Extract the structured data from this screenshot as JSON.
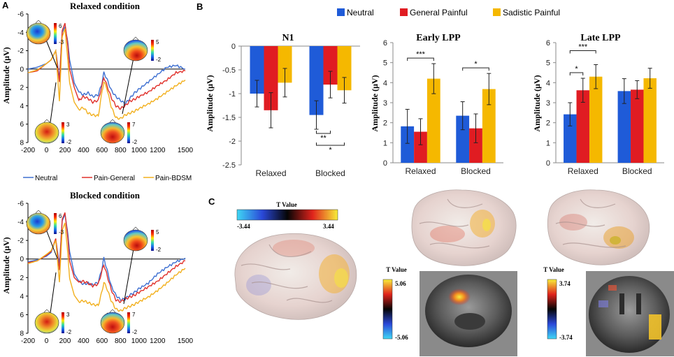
{
  "panel_labels": {
    "a": "A",
    "b": "B",
    "c": "C"
  },
  "colors": {
    "neutral": "#1f5bd8",
    "general": "#e01c22",
    "sadistic": "#f5b800",
    "erp_neutral": "#3d6fd1",
    "erp_general": "#e0302a",
    "erp_bdsm": "#f2b01e"
  },
  "erp": {
    "relaxed_title": "Relaxed condition",
    "blocked_title": "Blocked condition",
    "ylabel": "Amplitude (μV)",
    "yticks": [
      "-6",
      "-4",
      "-2",
      "0",
      "2",
      "4",
      "6",
      "8"
    ],
    "xticks": [
      "-200",
      "0",
      "200",
      "400",
      "600",
      "800",
      "1000",
      "1200",
      "1500"
    ],
    "legend": [
      "Neutral",
      "Pain-General",
      "Pain-BDSM"
    ],
    "topo_scales": {
      "relaxed": [
        [
          "6",
          "-3"
        ],
        [
          "5",
          "-2"
        ],
        [
          "3",
          "-2"
        ],
        [
          "7",
          "-2"
        ]
      ],
      "blocked": [
        [
          "6",
          "-3"
        ],
        [
          "5",
          "-2"
        ],
        [
          "3",
          "-2"
        ],
        [
          "7",
          "-2"
        ]
      ]
    }
  },
  "bar_legend": [
    "Neutral",
    "General Painful",
    "Sadistic Painful"
  ],
  "brain": {
    "tvalue_label": "T Value",
    "scale_main": {
      "min": "-3.44",
      "max": "3.44"
    },
    "scale_sag": {
      "max": "5.06",
      "min": "-5.06"
    },
    "scale_cor": {
      "max": "3.74",
      "min": "-3.74"
    }
  },
  "chart_data": [
    {
      "type": "line",
      "title": "Relaxed condition",
      "xlabel": "",
      "ylabel": "Amplitude (μV)",
      "xlim": [
        -200,
        1500
      ],
      "ylim": [
        8,
        -6
      ],
      "y_inverted": true,
      "series": [
        {
          "name": "Neutral",
          "x": [
            -200,
            -100,
            0,
            50,
            100,
            140,
            170,
            200,
            230,
            250,
            300,
            350,
            400,
            450,
            500,
            560,
            600,
            620,
            650,
            700,
            750,
            800,
            850,
            900,
            950,
            1000,
            1100,
            1200,
            1300,
            1400,
            1500
          ],
          "y": [
            0,
            -0.2,
            -0.6,
            -1,
            -2,
            1,
            -4,
            -4.6,
            -3,
            -1,
            1.5,
            2.5,
            2.8,
            2.6,
            3,
            2.8,
            1.5,
            0.4,
            1,
            2.3,
            3,
            3.4,
            3.8,
            3.2,
            2.6,
            2.2,
            1.4,
            0.6,
            -0.2,
            -0.4,
            0
          ]
        },
        {
          "name": "Pain-General",
          "x": [
            -200,
            -100,
            0,
            50,
            100,
            140,
            170,
            200,
            230,
            250,
            300,
            350,
            400,
            450,
            500,
            560,
            600,
            620,
            650,
            700,
            750,
            800,
            850,
            900,
            950,
            1000,
            1100,
            1200,
            1300,
            1400,
            1500
          ],
          "y": [
            0.4,
            0.2,
            -0.6,
            -1,
            -2,
            1.4,
            -4.2,
            -5,
            -2.6,
            0,
            2,
            3.4,
            3,
            3.2,
            3.6,
            3.4,
            1.8,
            0.9,
            1.7,
            3.1,
            4,
            4.3,
            4,
            3.5,
            3.3,
            3,
            2.5,
            1.8,
            1.2,
            0.4,
            0.2
          ]
        },
        {
          "name": "Pain-BDSM",
          "x": [
            -200,
            -100,
            0,
            50,
            100,
            140,
            170,
            200,
            230,
            250,
            300,
            350,
            400,
            450,
            500,
            560,
            600,
            620,
            650,
            700,
            750,
            800,
            850,
            900,
            950,
            1000,
            1100,
            1200,
            1300,
            1400,
            1500
          ],
          "y": [
            0.4,
            0.1,
            -0.6,
            -1,
            -2,
            3.5,
            -3.5,
            -4.4,
            -1,
            1.5,
            3.6,
            4.4,
            4.2,
            4.8,
            5,
            5.1,
            2.5,
            1.4,
            2,
            4.1,
            5.3,
            5.4,
            5,
            4.8,
            4.6,
            4.3,
            3.8,
            3.2,
            2.5,
            1.8,
            1.2
          ]
        }
      ]
    },
    {
      "type": "line",
      "title": "Blocked condition",
      "xlabel": "",
      "ylabel": "Amplitude (μV)",
      "xlim": [
        -200,
        1500
      ],
      "ylim": [
        8,
        -6
      ],
      "y_inverted": true,
      "series": [
        {
          "name": "Neutral",
          "x": [
            -200,
            -100,
            0,
            50,
            100,
            140,
            170,
            200,
            230,
            250,
            300,
            350,
            400,
            450,
            500,
            560,
            600,
            620,
            650,
            700,
            750,
            800,
            850,
            900,
            950,
            1000,
            1100,
            1200,
            1300,
            1400,
            1500
          ],
          "y": [
            0.3,
            0.1,
            -0.3,
            -0.7,
            -2.1,
            0.6,
            -4.1,
            -4.8,
            -2.8,
            -0.8,
            1.6,
            2.4,
            2.7,
            2.6,
            2.8,
            2.5,
            1,
            -0.1,
            1,
            2.9,
            3.9,
            4.4,
            4.3,
            3.9,
            3.6,
            3.2,
            2.6,
            1.6,
            0.9,
            0.3,
            -0.1
          ]
        },
        {
          "name": "Pain-General",
          "x": [
            -200,
            -100,
            0,
            50,
            100,
            140,
            170,
            200,
            230,
            250,
            300,
            350,
            400,
            450,
            500,
            560,
            600,
            620,
            650,
            700,
            750,
            800,
            850,
            900,
            950,
            1000,
            1100,
            1200,
            1300,
            1400,
            1500
          ],
          "y": [
            0.4,
            0.2,
            -0.4,
            -0.8,
            -2.2,
            1.2,
            -4.3,
            -5,
            -2.3,
            0.2,
            2,
            2.5,
            2.4,
            2.6,
            2.9,
            2.7,
            1.3,
            0.6,
            1.6,
            3.3,
            4.4,
            4.6,
            4.3,
            4.1,
            3.9,
            3.6,
            3,
            2.4,
            1.6,
            0.8,
            0.2
          ]
        },
        {
          "name": "Pain-BDSM",
          "x": [
            -200,
            -100,
            0,
            50,
            100,
            140,
            170,
            200,
            230,
            250,
            300,
            350,
            400,
            450,
            500,
            560,
            600,
            620,
            650,
            700,
            750,
            800,
            850,
            900,
            950,
            1000,
            1100,
            1200,
            1300,
            1400,
            1500
          ],
          "y": [
            0.5,
            0.2,
            -0.5,
            -0.9,
            -2,
            2.5,
            -3.1,
            -3.9,
            -0.6,
            2.1,
            3.9,
            4.6,
            4.5,
            4.7,
            4.9,
            5,
            3.5,
            2.5,
            3.1,
            4.5,
            5.4,
            5.6,
            5.3,
            5.1,
            4.9,
            4.6,
            4.1,
            3.4,
            2.6,
            1.7,
            1
          ]
        }
      ]
    },
    {
      "type": "bar",
      "title": "N1",
      "xlabel": "",
      "ylabel": "Amplitude (μV)",
      "categories": [
        "Relaxed",
        "Blocked"
      ],
      "ylim": [
        -2.5,
        0
      ],
      "yticks": [
        "-2.5",
        "-2",
        "-1.5",
        "-1",
        "-0.5",
        "0"
      ],
      "series": [
        {
          "name": "Neutral",
          "values": [
            -1.0,
            -1.45
          ],
          "errors": [
            0.28,
            0.3
          ]
        },
        {
          "name": "General Painful",
          "values": [
            -1.35,
            -0.81
          ],
          "errors": [
            0.37,
            0.28
          ]
        },
        {
          "name": "Sadistic Painful",
          "values": [
            -0.77,
            -0.93
          ],
          "errors": [
            0.3,
            0.27
          ]
        }
      ],
      "significance": [
        {
          "category": "Blocked",
          "pair": [
            "Neutral",
            "General Painful"
          ],
          "label": "**"
        },
        {
          "category": "Blocked",
          "pair": [
            "Neutral",
            "Sadistic Painful"
          ],
          "label": "*"
        }
      ]
    },
    {
      "type": "bar",
      "title": "Early LPP",
      "xlabel": "",
      "ylabel": "Amplitude (μV)",
      "categories": [
        "Relaxed",
        "Blocked"
      ],
      "ylim": [
        0,
        6
      ],
      "yticks": [
        "0",
        "1",
        "2",
        "3",
        "4",
        "5",
        "6"
      ],
      "series": [
        {
          "name": "Neutral",
          "values": [
            1.82,
            2.35
          ],
          "errors": [
            0.85,
            0.7
          ]
        },
        {
          "name": "General Painful",
          "values": [
            1.55,
            1.72
          ],
          "errors": [
            0.65,
            0.72
          ]
        },
        {
          "name": "Sadistic Painful",
          "values": [
            4.2,
            3.68
          ],
          "errors": [
            0.75,
            0.78
          ]
        }
      ],
      "significance": [
        {
          "category": "Relaxed",
          "pair": [
            "Neutral",
            "Sadistic Painful"
          ],
          "label": "***"
        },
        {
          "category": "Blocked",
          "pair": [
            "Neutral",
            "Sadistic Painful"
          ],
          "label": "*"
        }
      ]
    },
    {
      "type": "bar",
      "title": "Late LPP",
      "xlabel": "",
      "ylabel": "Amplitude (μV)",
      "categories": [
        "Relaxed",
        "Blocked"
      ],
      "ylim": [
        0,
        6
      ],
      "yticks": [
        "0",
        "1",
        "2",
        "3",
        "4",
        "5",
        "6"
      ],
      "series": [
        {
          "name": "Neutral",
          "values": [
            2.42,
            3.58
          ],
          "errors": [
            0.58,
            0.62
          ]
        },
        {
          "name": "General Painful",
          "values": [
            3.62,
            3.65
          ],
          "errors": [
            0.6,
            0.45
          ]
        },
        {
          "name": "Sadistic Painful",
          "values": [
            4.3,
            4.22
          ],
          "errors": [
            0.6,
            0.5
          ]
        }
      ],
      "significance": [
        {
          "category": "Relaxed",
          "pair": [
            "Neutral",
            "General Painful"
          ],
          "label": "*"
        },
        {
          "category": "Relaxed",
          "pair": [
            "Neutral",
            "Sadistic Painful"
          ],
          "label": "***"
        }
      ]
    }
  ]
}
